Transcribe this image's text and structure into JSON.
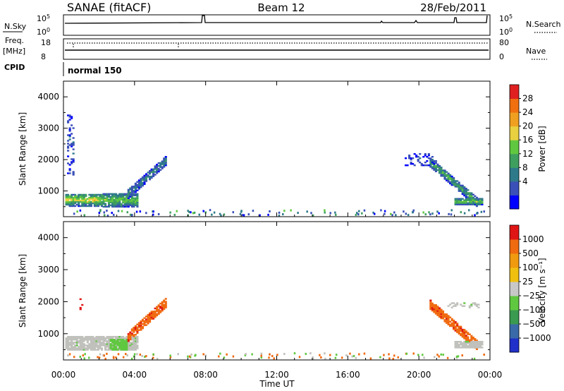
{
  "header": {
    "station": "SANAE (fitACF)",
    "beam": "Beam 12",
    "date": "28/Feb/2011"
  },
  "status_panels": {
    "nsky_label": "N.Sky",
    "nsky_ticks": [
      "10^5",
      "10^0"
    ],
    "nsearch_label": "N.Search",
    "nsearch_ticks": [
      "10^5",
      "10^0"
    ],
    "freq_label_line1": "Freq.",
    "freq_label_line2": "[MHz]",
    "freq_ticks": [
      "18",
      "8"
    ],
    "nave_label": "Nave",
    "nave_ticks": [
      "80",
      "0"
    ],
    "cpid_label": "CPID",
    "cpid_text": "normal 150"
  },
  "colors": {
    "power": [
      "#0000ff",
      "#3a4fb8",
      "#2f7a8a",
      "#3f9f5f",
      "#60c840",
      "#e8d040",
      "#f0a020",
      "#f07010",
      "#e02020"
    ],
    "velocity": [
      "#e01515",
      "#f06a10",
      "#f09a10",
      "#f0c010",
      "#c8c8c8",
      "#60c840",
      "#3a9a50",
      "#3a6aa8",
      "#2030c8"
    ],
    "ground_scatter": "#c0c0bc"
  },
  "chart_data": [
    {
      "type": "heatmap",
      "name": "power",
      "ylabel": "Slant Range [km]",
      "yticks": [
        "4000",
        "3000",
        "2000",
        "1000"
      ],
      "ylim": [
        180,
        4500
      ],
      "xlim": [
        0,
        24
      ],
      "colorbar_label": "Power [dB]",
      "colorbar_ticks": [
        "28",
        "24",
        "20",
        "16",
        "12",
        "8",
        "4"
      ],
      "colorbar_range": [
        0,
        32
      ],
      "regions": [
        {
          "t0": 0.1,
          "t1": 2.2,
          "r0": 500,
          "r1": 900,
          "center_level": 20,
          "edge_level": 6
        },
        {
          "t0": 2.2,
          "t1": 4.2,
          "r0": 480,
          "r1": 900,
          "center_level": 16,
          "edge_level": 6
        },
        {
          "t0": 3.6,
          "t1": 5.7,
          "r0": 900,
          "r1": 1950,
          "center_level": 10,
          "edge_level": 4,
          "slope": true
        },
        {
          "t0": 0.2,
          "t1": 0.6,
          "r0": 1500,
          "r1": 3400,
          "center_level": 6,
          "edge_level": 4,
          "sparse": true
        },
        {
          "t0": 20.6,
          "t1": 23.3,
          "r0": 600,
          "r1": 1900,
          "center_level": 14,
          "edge_level": 4,
          "slope": true,
          "descending": true
        },
        {
          "t0": 22.0,
          "t1": 23.6,
          "r0": 550,
          "r1": 750,
          "center_level": 16,
          "edge_level": 6
        },
        {
          "t0": 19.2,
          "t1": 21.0,
          "r0": 1800,
          "r1": 2200,
          "center_level": 5,
          "edge_level": 4,
          "sparse": true
        }
      ]
    },
    {
      "type": "heatmap",
      "name": "velocity",
      "ylabel": "Slant Range [km]",
      "yticks": [
        "4000",
        "3000",
        "2000",
        "1000"
      ],
      "ylim": [
        180,
        4500
      ],
      "xlim": [
        0,
        24
      ],
      "xlabel": "Time UT",
      "xticks": [
        "00:00",
        "04:00",
        "08:00",
        "12:00",
        "16:00",
        "20:00",
        "00:00"
      ],
      "colorbar_label": "Velocity [m s⁻¹]",
      "colorbar_ticks": [
        "1000",
        "500",
        "100",
        "25",
        "−25",
        "−100",
        "−500",
        "−1000"
      ],
      "regions": [
        {
          "t0": 0.1,
          "t1": 4.2,
          "r0": 480,
          "r1": 900,
          "kind": "ground"
        },
        {
          "t0": 2.6,
          "t1": 3.6,
          "r0": 480,
          "r1": 800,
          "kind": "green"
        },
        {
          "t0": 3.6,
          "t1": 5.7,
          "r0": 900,
          "r1": 1950,
          "kind": "orange",
          "slope": true
        },
        {
          "t0": 20.6,
          "t1": 23.3,
          "r0": 600,
          "r1": 1900,
          "kind": "orange",
          "slope": true,
          "descending": true
        },
        {
          "t0": 22.0,
          "t1": 23.6,
          "r0": 550,
          "r1": 750,
          "kind": "ground"
        },
        {
          "t0": 21.6,
          "t1": 23.4,
          "r0": 1800,
          "r1": 1950,
          "kind": "ground",
          "sparse": true
        },
        {
          "t0": 0.9,
          "t1": 1.2,
          "r0": 1700,
          "r1": 2100,
          "kind": "red",
          "sparse": true
        }
      ]
    }
  ]
}
